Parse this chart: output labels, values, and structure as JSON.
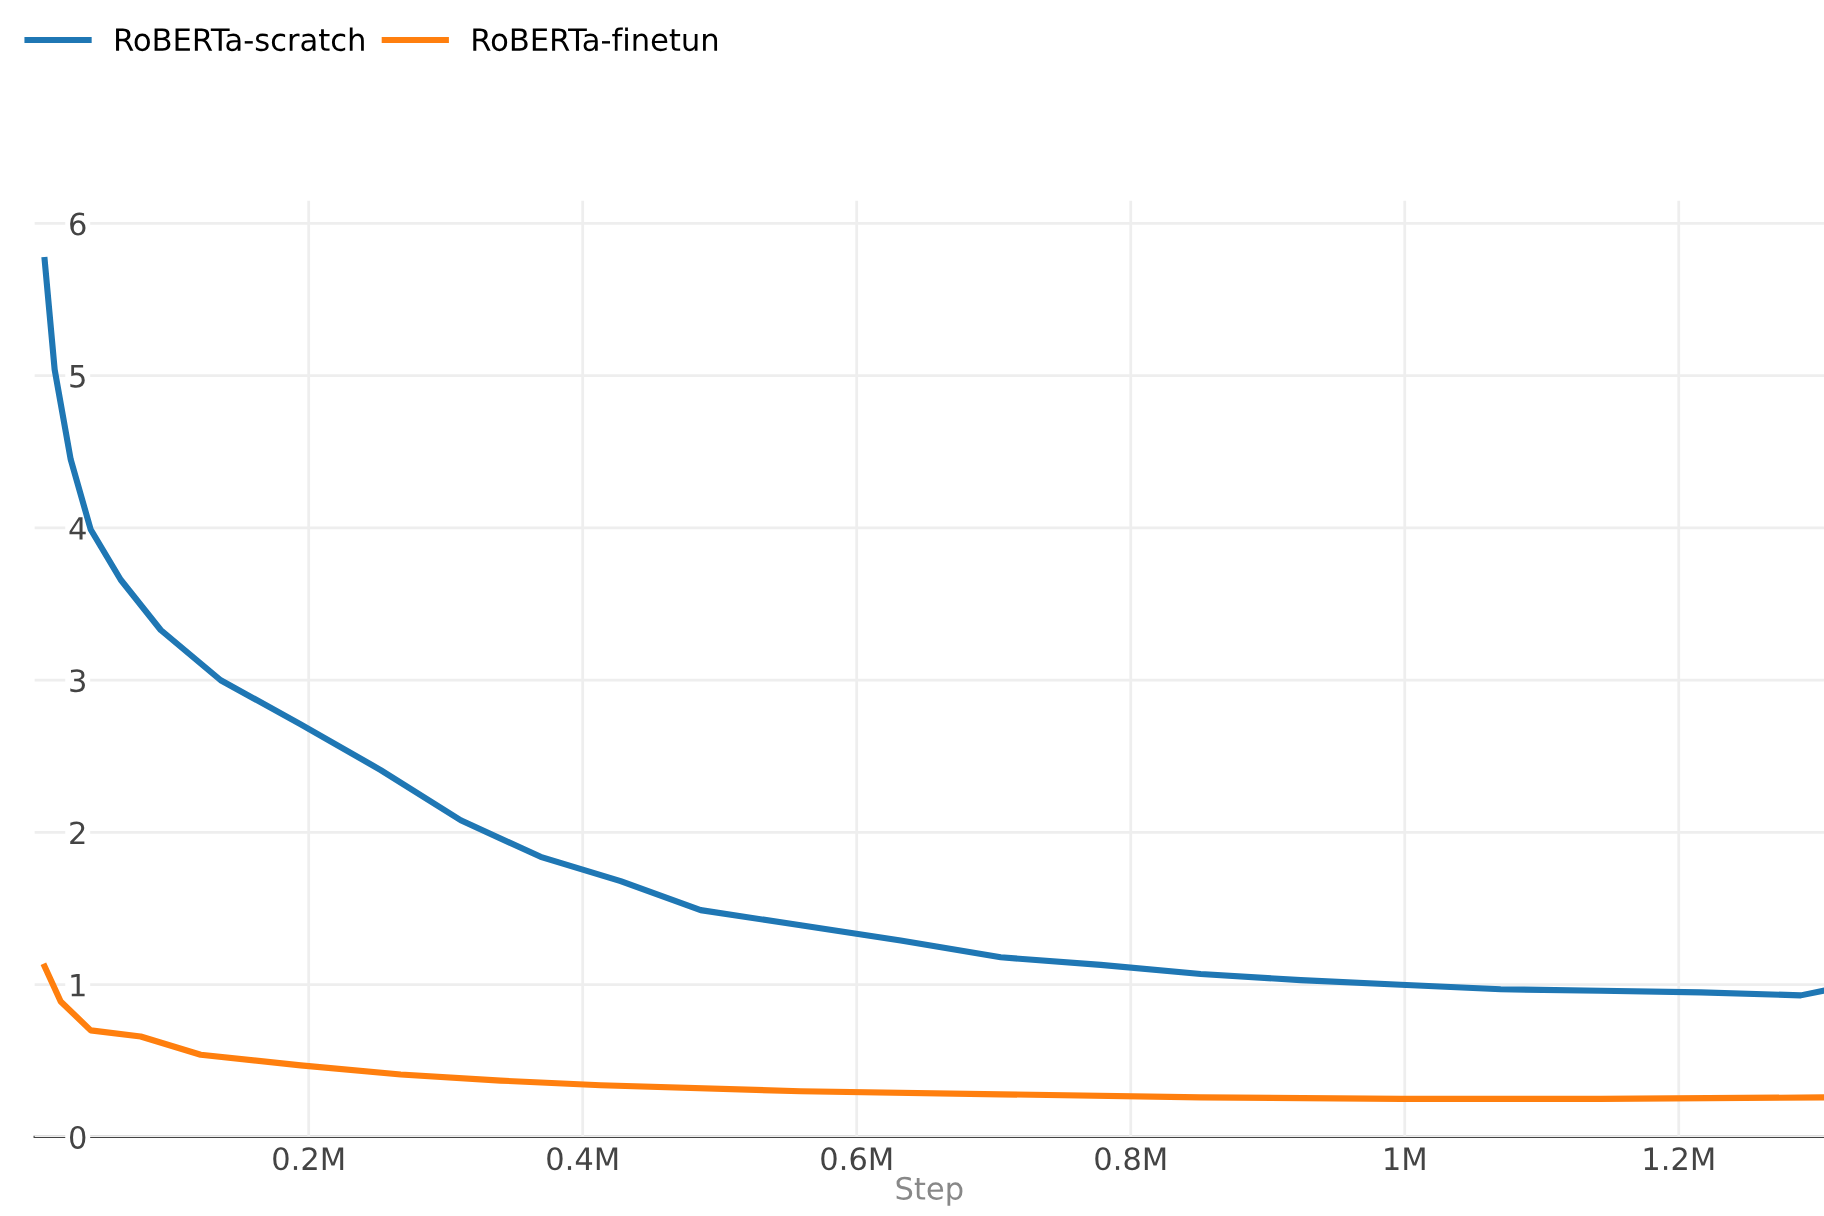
{
  "chart_data": {
    "type": "line",
    "xlabel": "Step",
    "legend": "top left",
    "grid": true,
    "marker": "none",
    "line_style": "solid",
    "xlim": [
      0,
      1306000
    ],
    "ylim": [
      0,
      6.15
    ],
    "xticks": [
      {
        "value": 200000,
        "label": "0.2M"
      },
      {
        "value": 400000,
        "label": "0.4M"
      },
      {
        "value": 600000,
        "label": "0.6M"
      },
      {
        "value": 800000,
        "label": "0.8M"
      },
      {
        "value": 1000000,
        "label": "1M"
      },
      {
        "value": 1200000,
        "label": "1.2M"
      }
    ],
    "yticks": [
      0,
      1,
      2,
      3,
      4,
      5,
      6
    ],
    "series": [
      {
        "name": "RoBERTa-scratch",
        "color": "#1f77b4",
        "x": [
          7300,
          14600,
          26300,
          40900,
          62800,
          92000,
          135800,
          194200,
          252600,
          311000,
          369300,
          427700,
          486100,
          559100,
          632100,
          705100,
          778100,
          851100,
          924100,
          997100,
          1070000,
          1143000,
          1216000,
          1289000,
          1305000
        ],
        "values": [
          5.76,
          5.04,
          4.45,
          3.99,
          3.66,
          3.33,
          3.0,
          2.71,
          2.41,
          2.08,
          1.84,
          1.68,
          1.49,
          1.39,
          1.29,
          1.18,
          1.13,
          1.07,
          1.03,
          1.0,
          0.97,
          0.96,
          0.95,
          0.93,
          0.96
        ]
      },
      {
        "name": "RoBERTa-finetun",
        "color": "#ff7f0e",
        "x": [
          7300,
          19000,
          40900,
          77400,
          121200,
          194200,
          267200,
          340100,
          413100,
          559100,
          705100,
          851100,
          997100,
          1143000,
          1305000
        ],
        "values": [
          1.12,
          0.89,
          0.7,
          0.66,
          0.54,
          0.47,
          0.41,
          0.37,
          0.34,
          0.3,
          0.28,
          0.26,
          0.25,
          0.25,
          0.26
        ]
      }
    ]
  }
}
